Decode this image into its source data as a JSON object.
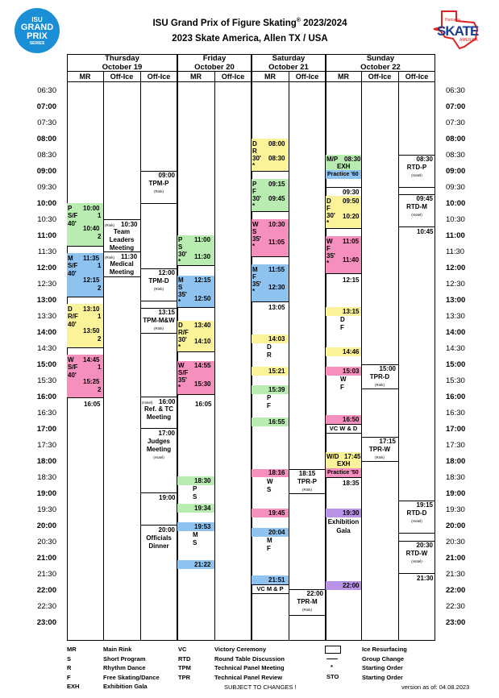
{
  "header": {
    "title_line1": "ISU Grand Prix of Figure Skating",
    "title_sup": "®",
    "title_season": " 2023/2024",
    "title_line2": "2023 Skate America, Allen TX / USA",
    "isu_logo": [
      "ISU",
      "GRAND",
      "PRIX",
      "SERIES"
    ],
    "skate_logo": [
      "Humana",
      "SKATE",
      "AMERICA"
    ]
  },
  "days": [
    {
      "name": "Thursday",
      "date": "October 19"
    },
    {
      "name": "Friday",
      "date": "October 20"
    },
    {
      "name": "Saturday",
      "date": "October 21"
    },
    {
      "name": "Sunday",
      "date": "October 22"
    }
  ],
  "columns": [
    "MR",
    "Off-Ice",
    "Off-Ice",
    "MR",
    "Off-Ice",
    "MR",
    "Off-Ice",
    "MR",
    "Off-Ice",
    "Off-Ice"
  ],
  "times": [
    "06:30",
    "07:00",
    "07:30",
    "08:00",
    "08:30",
    "09:00",
    "09:30",
    "10:00",
    "10:30",
    "11:00",
    "11:30",
    "12:00",
    "12:30",
    "13:00",
    "13:30",
    "14:00",
    "14:30",
    "15:00",
    "15:30",
    "16:00",
    "16:30",
    "17:00",
    "17:30",
    "18:00",
    "18:30",
    "19:00",
    "19:30",
    "20:00",
    "20:30",
    "21:00",
    "21:30",
    "22:00",
    "22:30",
    "23:00"
  ],
  "thu": {
    "b1": [
      "P",
      "S/F",
      "40'",
      "10:00",
      "1",
      "10:40",
      "2"
    ],
    "b2": [
      "M",
      "S/F",
      "40'",
      "11:35",
      "1",
      "12:15",
      "2"
    ],
    "b3": [
      "D",
      "R/F",
      "40'",
      "13:10",
      "1",
      "13:50",
      "2"
    ],
    "b4": [
      "W",
      "S/F",
      "40'",
      "14:45",
      "1",
      "15:25",
      "2"
    ],
    "end": "16:05",
    "team": [
      "10:30",
      "(Rink)",
      "Team",
      "Leaders",
      "Meeting"
    ],
    "medical": [
      "11:30",
      "(Rink)",
      "Medical",
      "Meeting"
    ],
    "tpmp": [
      "09:00",
      "TPM-P",
      "(Rink)"
    ],
    "tpmd": [
      "12:00",
      "TPM-D",
      "(Rink)"
    ],
    "tpmmw": [
      "13:15",
      "TPM-M&W",
      "(Rink)"
    ],
    "reftc": [
      "16:00",
      "(Hotel)",
      "Ref. & TC",
      "Meeting"
    ],
    "judges": [
      "17:00",
      "Judges",
      "Meeting",
      "(Hotel)"
    ],
    "t1900": "19:00",
    "officials": [
      "20:00",
      "Officials",
      "Dinner"
    ]
  },
  "fri": {
    "b1": [
      "P",
      "S",
      "30'",
      "*",
      "11:00",
      "11:30"
    ],
    "b2": [
      "M",
      "S",
      "35'",
      "*",
      "12:15",
      "12:50"
    ],
    "b3": [
      "D",
      "R/F",
      "30'",
      "*",
      "13:40",
      "14:10"
    ],
    "b4": [
      "W",
      "S/F",
      "35'",
      "*",
      "14:55",
      "15:30"
    ],
    "end": "16:05",
    "ps": [
      "18:30",
      "P",
      "S",
      "19:34"
    ],
    "ms": [
      "19:53",
      "M",
      "S",
      "21:22"
    ]
  },
  "sat": {
    "b1": [
      "D",
      "R",
      "30'",
      "*",
      "08:00",
      "08:30"
    ],
    "b2": [
      "P",
      "F",
      "30'",
      "*",
      "09:15",
      "09:45"
    ],
    "b3": [
      "W",
      "S",
      "35'",
      "*",
      "10:30",
      "11:05"
    ],
    "b4": [
      "M",
      "F",
      "35'",
      "*",
      "11:55",
      "12:30"
    ],
    "t1305": "13:05",
    "dr": [
      "14:03",
      "D",
      "R",
      "15:21"
    ],
    "pf": [
      "15:39",
      "P",
      "F",
      "16:55"
    ],
    "ws": [
      "18:16",
      "W",
      "S",
      "19:45"
    ],
    "mf": [
      "20:04",
      "M",
      "F",
      "21:51"
    ],
    "vc": "VC M & P",
    "tprp": [
      "18:15",
      "TPR-P",
      "(Rink)"
    ],
    "tprm": [
      "22:00",
      "TPR-M",
      "(Rink)"
    ]
  },
  "sun": {
    "mp": [
      "M/P",
      "08:30",
      "EXH",
      "Practice '60"
    ],
    "t0930": "09:30",
    "b1": [
      "D",
      "F",
      "30'",
      "*",
      "09:50",
      "10:20"
    ],
    "b2": [
      "W",
      "F",
      "35'",
      "*",
      "11:05",
      "11:40"
    ],
    "t1215": "12:15",
    "df": [
      "13:15",
      "D",
      "F",
      "14:46"
    ],
    "wf": [
      "15:03",
      "W",
      "F",
      "16:50"
    ],
    "vc": "VC W & D",
    "wd": [
      "W/D",
      "17:45",
      "EXH",
      "Practice '50"
    ],
    "t1835": "18:35",
    "gala": [
      "19:30",
      "Exhibition",
      "Gala",
      "22:00"
    ],
    "tprd": [
      "15:00",
      "TPR-D",
      "(Rink)"
    ],
    "tprw": [
      "17:15",
      "TPR-W",
      "(Rink)"
    ],
    "rtdp": [
      "08:30",
      "RTD-P",
      "(Hotel)"
    ],
    "rtdm": [
      "09:45",
      "RTD-M",
      "(Hotel)",
      "10:45"
    ],
    "rtdd": [
      "19:15",
      "RTD-D",
      "(Hotel)"
    ],
    "rtdw": [
      "20:30",
      "RTD-W",
      "(Hotel)",
      "21:30"
    ]
  },
  "legend": {
    "col1": [
      [
        "MR",
        "Main Rink"
      ],
      [
        "S",
        "Short Program"
      ],
      [
        "R",
        "Rhythm Dance"
      ],
      [
        "F",
        "Free Skating/Dance"
      ],
      [
        "EXH",
        "Exhibition Gala"
      ]
    ],
    "col2": [
      [
        "VC",
        "Victory Ceremony"
      ],
      [
        "RTD",
        "Round Table Discussion"
      ],
      [
        "TPM",
        "Technical Panel Meeting"
      ],
      [
        "TPR",
        "Technical Panel Review"
      ]
    ],
    "col3": [
      "Ice Resurfacing",
      "Group Change",
      "Starting Order",
      "Starting Order"
    ],
    "sym_star": "*",
    "sym_sto": "STO",
    "subject": "SUBJECT TO CHANGES !",
    "version": "version as of: 04.08.2023"
  },
  "colors": {
    "pink": "#f58fbd",
    "blue": "#8ec3ef",
    "yellow": "#fbf39a",
    "green": "#b9ecb1",
    "purple": "#b993e6",
    "isu_blue": "#1a8fd6"
  }
}
